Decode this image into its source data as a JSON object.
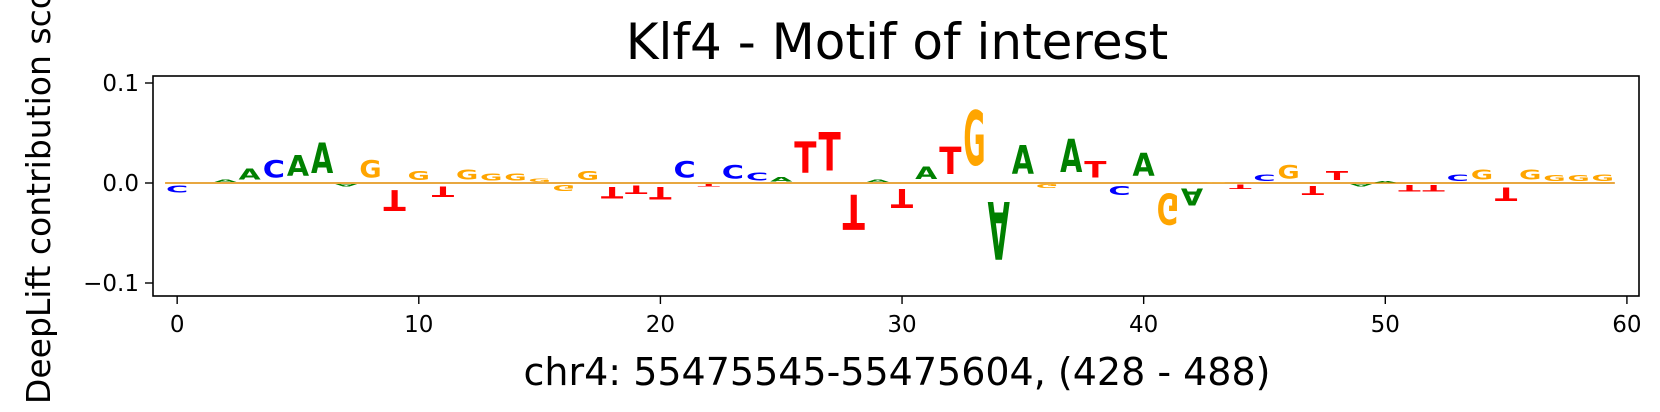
{
  "chart_data": {
    "type": "sequence-logo",
    "title": "Klf4 - Motif of interest",
    "xlabel": "chr4: 55475545-55475604, (428 - 488)",
    "ylabel": "DeepLift contribution score",
    "xlim": [
      -1,
      60.5
    ],
    "ylim": [
      -0.113,
      0.107
    ],
    "xticks": [
      0,
      10,
      20,
      30,
      40,
      50,
      60
    ],
    "xtick_labels": [
      "0",
      "10",
      "20",
      "30",
      "40",
      "50",
      "60"
    ],
    "yticks": [
      0.1,
      0.0,
      -0.1
    ],
    "ytick_labels": [
      "0.1",
      "0.0",
      "−0.1"
    ],
    "colors": {
      "A": "#008000",
      "C": "#0000ff",
      "G": "#ffa500",
      "T": "#ff0000"
    },
    "positions": [
      {
        "x": 0,
        "base": "C",
        "value": -0.011
      },
      {
        "x": 1,
        "base": "A",
        "value": 0.0003
      },
      {
        "x": 2,
        "base": "A",
        "value": 0.004
      },
      {
        "x": 3,
        "base": "A",
        "value": 0.018
      },
      {
        "x": 4,
        "base": "C",
        "value": 0.028
      },
      {
        "x": 5,
        "base": "A",
        "value": 0.033
      },
      {
        "x": 6,
        "base": "A",
        "value": 0.049
      },
      {
        "x": 7,
        "base": "A",
        "value": -0.004
      },
      {
        "x": 8,
        "base": "G",
        "value": 0.028
      },
      {
        "x": 9,
        "base": "T",
        "value": -0.033
      },
      {
        "x": 10,
        "base": "G",
        "value": 0.014
      },
      {
        "x": 11,
        "base": "T",
        "value": -0.017
      },
      {
        "x": 12,
        "base": "G",
        "value": 0.016
      },
      {
        "x": 13,
        "base": "G",
        "value": 0.011
      },
      {
        "x": 14,
        "base": "G",
        "value": 0.011
      },
      {
        "x": 15,
        "base": "G",
        "value": 0.005
      },
      {
        "x": 16,
        "base": "G",
        "value": -0.009
      },
      {
        "x": 17,
        "base": "G",
        "value": 0.014
      },
      {
        "x": 18,
        "base": "T",
        "value": -0.019
      },
      {
        "x": 19,
        "base": "T",
        "value": -0.013
      },
      {
        "x": 20,
        "base": "T",
        "value": -0.02
      },
      {
        "x": 21,
        "base": "C",
        "value": 0.026
      },
      {
        "x": 22,
        "base": "T",
        "value": -0.004
      },
      {
        "x": 23,
        "base": "C",
        "value": 0.022
      },
      {
        "x": 24,
        "base": "C",
        "value": 0.012
      },
      {
        "x": 25,
        "base": "A",
        "value": 0.007
      },
      {
        "x": 26,
        "base": "T",
        "value": 0.05
      },
      {
        "x": 27,
        "base": "T",
        "value": 0.062
      },
      {
        "x": 28,
        "base": "T",
        "value": -0.056
      },
      {
        "x": 29,
        "base": "A",
        "value": 0.004
      },
      {
        "x": 30,
        "base": "T",
        "value": -0.03
      },
      {
        "x": 31,
        "base": "A",
        "value": 0.02
      },
      {
        "x": 32,
        "base": "T",
        "value": 0.044
      },
      {
        "x": 33,
        "base": "G",
        "value": 0.088
      },
      {
        "x": 34,
        "base": "A",
        "value": -0.093
      },
      {
        "x": 35,
        "base": "A",
        "value": 0.046
      },
      {
        "x": 36,
        "base": "G",
        "value": -0.006
      },
      {
        "x": 37,
        "base": "A",
        "value": 0.053
      },
      {
        "x": 38,
        "base": "T",
        "value": 0.026
      },
      {
        "x": 39,
        "base": "C",
        "value": -0.014
      },
      {
        "x": 40,
        "base": "A",
        "value": 0.036
      },
      {
        "x": 41,
        "base": "G",
        "value": -0.05
      },
      {
        "x": 42,
        "base": "A",
        "value": -0.027
      },
      {
        "x": 43,
        "base": "G",
        "value": 0.001
      },
      {
        "x": 44,
        "base": "T",
        "value": -0.007
      },
      {
        "x": 45,
        "base": "C",
        "value": 0.01
      },
      {
        "x": 46,
        "base": "G",
        "value": 0.022
      },
      {
        "x": 47,
        "base": "T",
        "value": -0.015
      },
      {
        "x": 48,
        "base": "T",
        "value": 0.015
      },
      {
        "x": 49,
        "base": "A",
        "value": -0.004
      },
      {
        "x": 50,
        "base": "A",
        "value": 0.002
      },
      {
        "x": 51,
        "base": "T",
        "value": -0.01
      },
      {
        "x": 52,
        "base": "T",
        "value": -0.01
      },
      {
        "x": 53,
        "base": "C",
        "value": 0.01
      },
      {
        "x": 54,
        "base": "G",
        "value": 0.016
      },
      {
        "x": 55,
        "base": "T",
        "value": -0.022
      },
      {
        "x": 56,
        "base": "G",
        "value": 0.016
      },
      {
        "x": 57,
        "base": "G",
        "value": 0.009
      },
      {
        "x": 58,
        "base": "G",
        "value": 0.009
      },
      {
        "x": 59,
        "base": "G",
        "value": 0.01
      }
    ]
  }
}
